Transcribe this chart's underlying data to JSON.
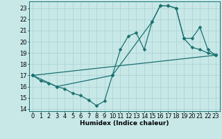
{
  "title": "",
  "xlabel": "Humidex (Indice chaleur)",
  "bg_color": "#c8e8e8",
  "line_color": "#1a7070",
  "grid_color": "#a8d0d0",
  "xlim": [
    -0.5,
    23.5
  ],
  "ylim": [
    13.8,
    23.6
  ],
  "yticks": [
    14,
    15,
    16,
    17,
    18,
    19,
    20,
    21,
    22,
    23
  ],
  "xticks": [
    0,
    1,
    2,
    3,
    4,
    5,
    6,
    7,
    8,
    9,
    10,
    11,
    12,
    13,
    14,
    15,
    16,
    17,
    18,
    19,
    20,
    21,
    22,
    23
  ],
  "line1_x": [
    0,
    1,
    2,
    3,
    4,
    5,
    6,
    7,
    8,
    9,
    10,
    11,
    12,
    13,
    14,
    15,
    16,
    17,
    18,
    19,
    20,
    21,
    22,
    23
  ],
  "line1_y": [
    17.0,
    16.5,
    16.3,
    16.0,
    15.8,
    15.4,
    15.2,
    14.8,
    14.3,
    14.7,
    17.0,
    19.3,
    20.5,
    20.8,
    19.3,
    21.8,
    23.2,
    23.2,
    23.0,
    20.3,
    19.5,
    19.3,
    19.0,
    18.8
  ],
  "line2_x": [
    0,
    3,
    10,
    15,
    16,
    17,
    18,
    19,
    20,
    21,
    22,
    23
  ],
  "line2_y": [
    17.0,
    16.0,
    17.0,
    21.8,
    23.2,
    23.2,
    23.0,
    20.3,
    20.3,
    21.3,
    19.3,
    18.8
  ],
  "line3_x": [
    0,
    23
  ],
  "line3_y": [
    17.0,
    18.8
  ],
  "marker_size": 2.5,
  "linewidth": 0.9,
  "font_size": 6.5
}
